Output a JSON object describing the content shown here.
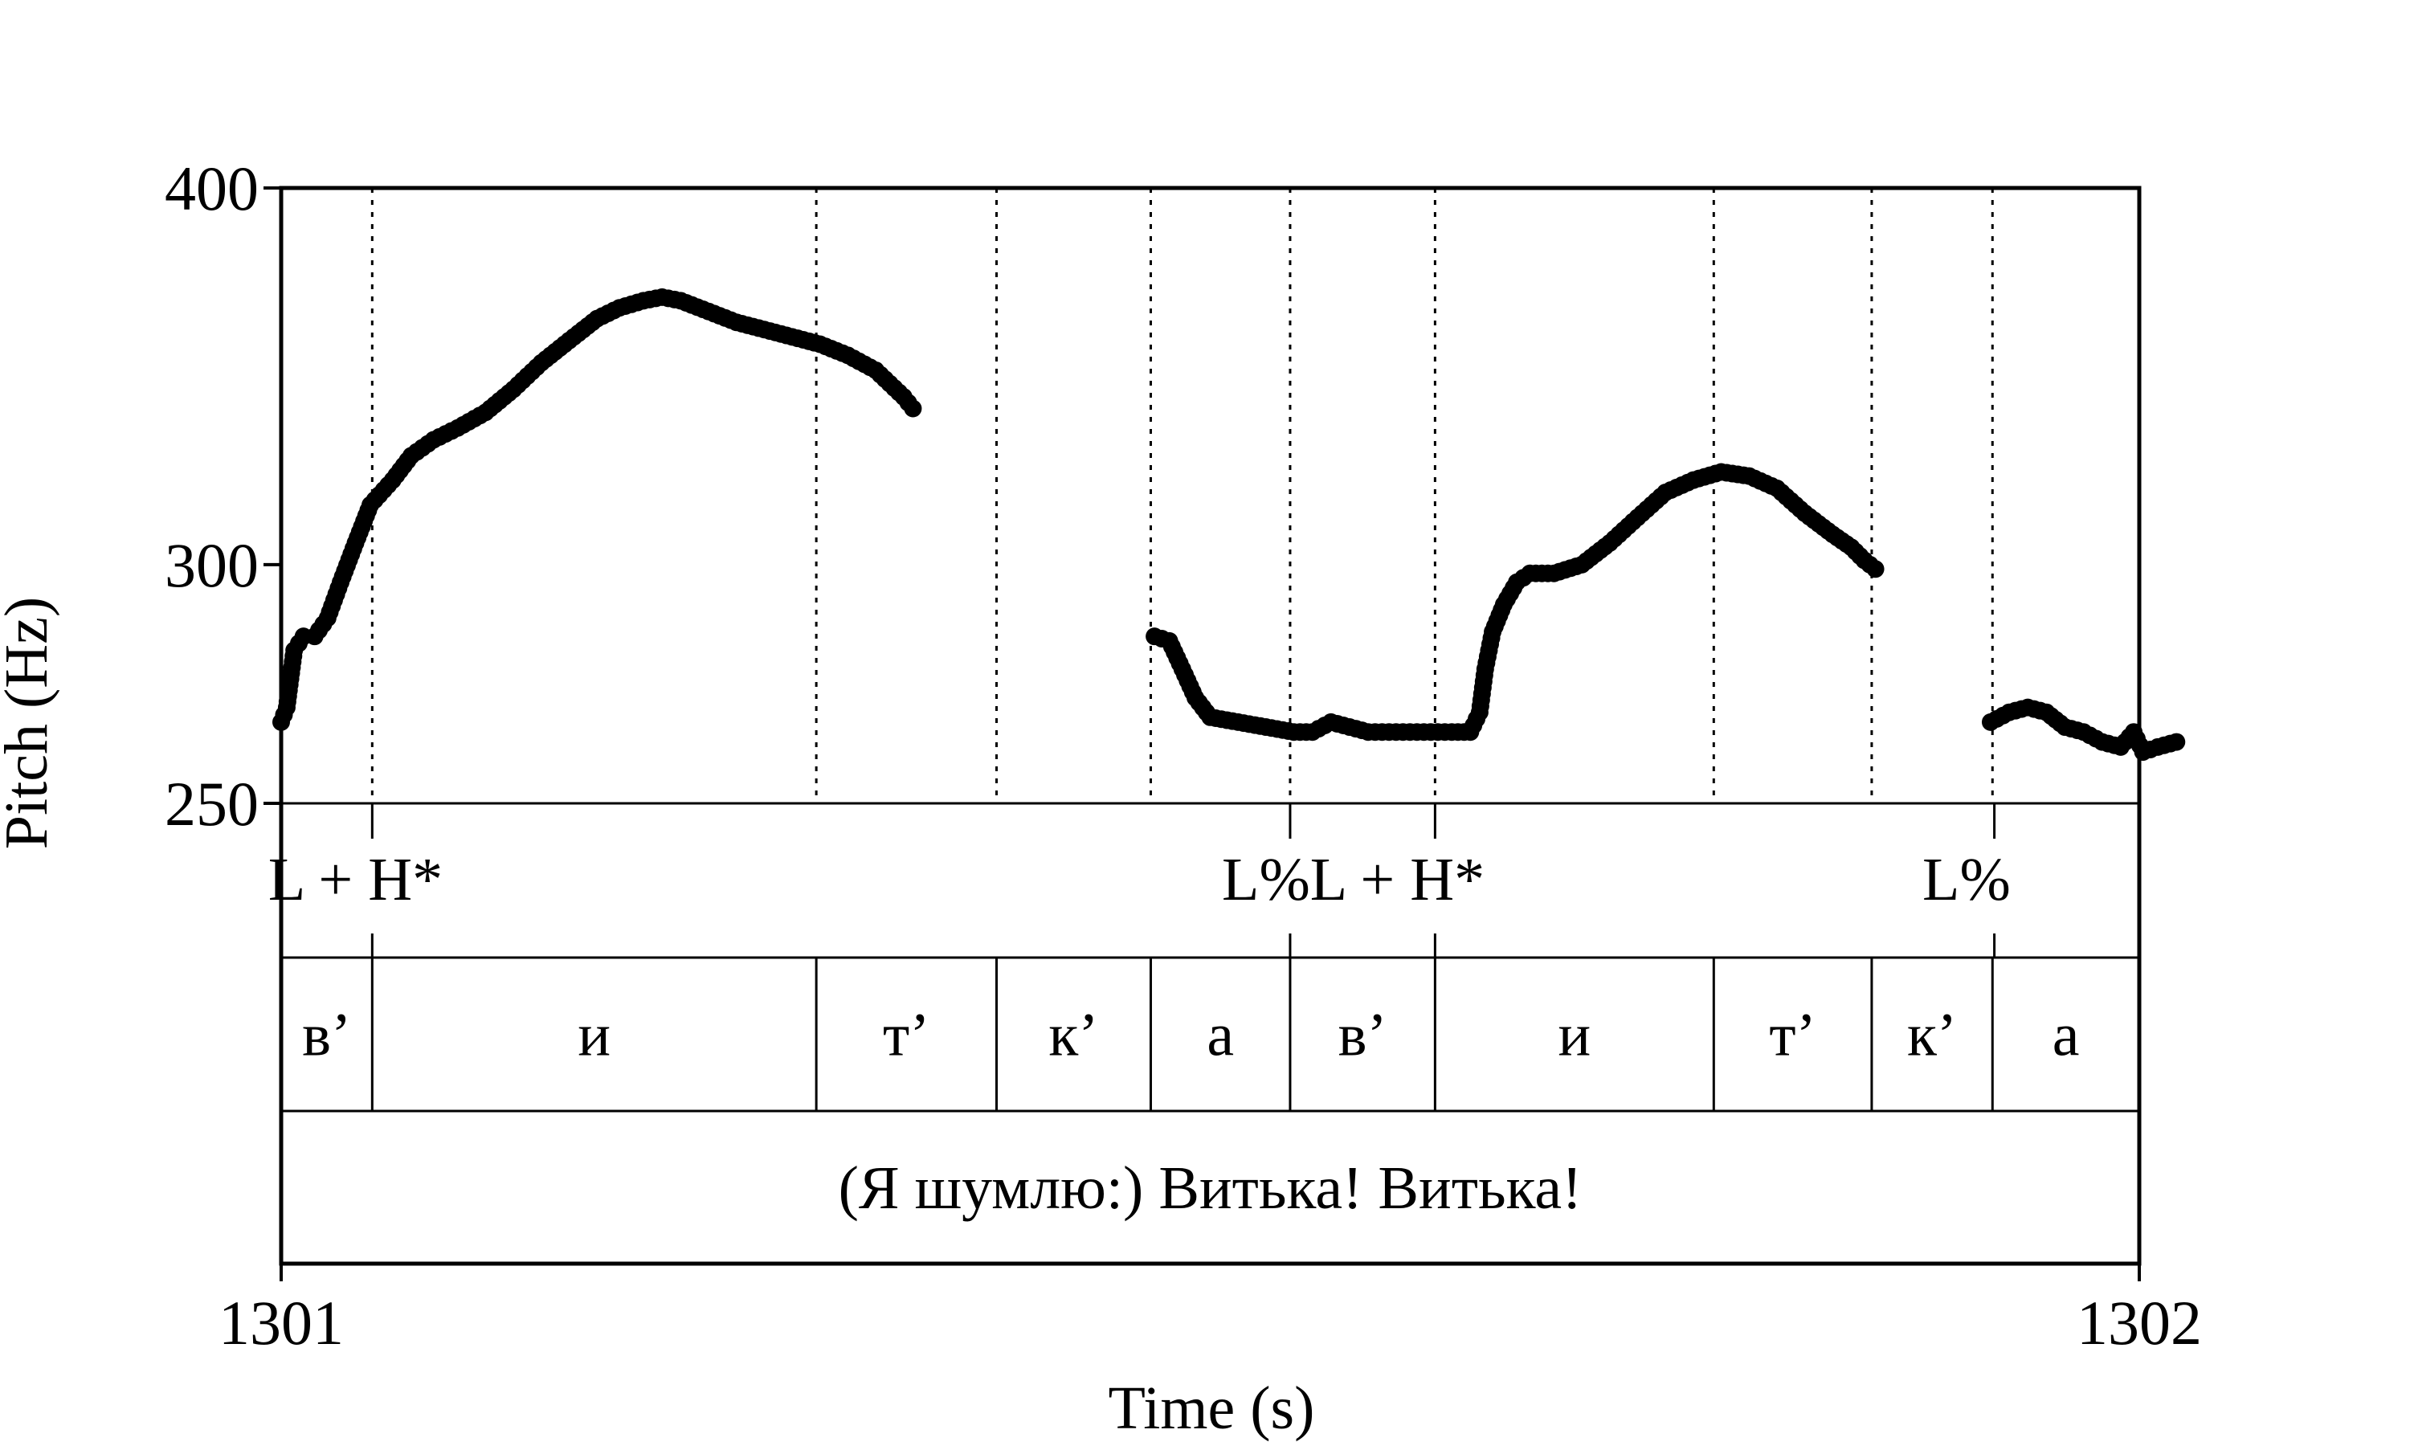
{
  "chart_data": {
    "type": "scatter",
    "xlabel": "Time (s)",
    "ylabel": "Pitch (Hz)",
    "xlim": [
      1301,
      1302
    ],
    "ylim": [
      250,
      400
    ],
    "x_ticks": [
      "1301",
      "1302"
    ],
    "y_ticks": [
      "400",
      "300",
      "250"
    ],
    "y_tick_values": [
      400,
      300,
      250
    ],
    "y_scale": "log",
    "marker_color": "#000000",
    "series": [
      {
        "points": [
          [
            1301.0,
            266
          ],
          [
            1301.003,
            269
          ],
          [
            1301.007,
            281
          ],
          [
            1301.012,
            284
          ],
          [
            1301.018,
            284
          ],
          [
            1301.025,
            288
          ],
          [
            1301.032,
            296
          ],
          [
            1301.04,
            305
          ],
          [
            1301.048,
            314
          ],
          [
            1301.06,
            320
          ],
          [
            1301.07,
            326
          ],
          [
            1301.082,
            330
          ],
          [
            1301.095,
            333
          ],
          [
            1301.11,
            337
          ],
          [
            1301.125,
            343
          ],
          [
            1301.14,
            350
          ],
          [
            1301.155,
            356
          ],
          [
            1301.17,
            362
          ],
          [
            1301.182,
            365
          ],
          [
            1301.195,
            367
          ],
          [
            1301.205,
            368
          ],
          [
            1301.215,
            367
          ],
          [
            1301.23,
            364
          ],
          [
            1301.245,
            361
          ],
          [
            1301.26,
            359
          ],
          [
            1301.275,
            357
          ],
          [
            1301.29,
            355
          ],
          [
            1301.305,
            352
          ],
          [
            1301.32,
            348
          ],
          [
            1301.335,
            341
          ],
          [
            1301.34,
            338
          ]
        ]
      },
      {
        "points": [
          [
            1301.47,
            284
          ],
          [
            1301.478,
            283
          ],
          [
            1301.485,
            277
          ],
          [
            1301.492,
            271
          ],
          [
            1301.5,
            267
          ],
          [
            1301.515,
            266
          ],
          [
            1301.53,
            265
          ],
          [
            1301.545,
            264
          ],
          [
            1301.555,
            264
          ],
          [
            1301.565,
            266
          ],
          [
            1301.575,
            265
          ],
          [
            1301.585,
            264
          ],
          [
            1301.6,
            264
          ],
          [
            1301.615,
            264
          ],
          [
            1301.63,
            264
          ],
          [
            1301.64,
            264
          ],
          [
            1301.645,
            268
          ],
          [
            1301.648,
            277
          ],
          [
            1301.652,
            285
          ],
          [
            1301.658,
            291
          ],
          [
            1301.665,
            296
          ],
          [
            1301.672,
            298
          ],
          [
            1301.685,
            298
          ],
          [
            1301.7,
            300
          ],
          [
            1301.715,
            305
          ],
          [
            1301.73,
            311
          ],
          [
            1301.745,
            317
          ],
          [
            1301.76,
            320
          ],
          [
            1301.775,
            322
          ],
          [
            1301.79,
            321
          ],
          [
            1301.805,
            318
          ],
          [
            1301.82,
            312
          ],
          [
            1301.835,
            307
          ],
          [
            1301.845,
            304
          ],
          [
            1301.852,
            301
          ],
          [
            1301.858,
            299
          ]
        ]
      },
      {
        "points": [
          [
            1301.92,
            266
          ],
          [
            1301.93,
            268
          ],
          [
            1301.94,
            269
          ],
          [
            1301.95,
            268
          ],
          [
            1301.96,
            265
          ],
          [
            1301.97,
            264
          ],
          [
            1301.98,
            262
          ],
          [
            1301.99,
            261
          ],
          [
            1301.997,
            264
          ],
          [
            1302.002,
            260
          ],
          [
            1302.01,
            261
          ],
          [
            1302.02,
            262
          ]
        ]
      }
    ],
    "tiers": [
      {
        "name": "tones",
        "boundaries": [
          1301.049,
          1301.543,
          1301.621,
          1301.922
        ],
        "labels": [
          {
            "x": 1301.04,
            "text": "L + H*"
          },
          {
            "x": 1301.577,
            "text": "L%L + H*"
          },
          {
            "x": 1301.907,
            "text": "L%"
          }
        ]
      },
      {
        "name": "segments",
        "boundaries": [
          1301.049,
          1301.288,
          1301.385,
          1301.468,
          1301.543,
          1301.621,
          1301.771,
          1301.856,
          1301.921
        ],
        "labels": [
          "в’",
          "и",
          "т’",
          "к’",
          "а",
          "в’",
          "и",
          "т’",
          "к’",
          "а"
        ]
      },
      {
        "name": "sentence",
        "labels": [
          "(Я шумлю:) Витька! Витька!"
        ]
      }
    ],
    "grid_dotted_at": [
      1301.049,
      1301.288,
      1301.385,
      1301.468,
      1301.543,
      1301.621,
      1301.771,
      1301.856,
      1301.921
    ],
    "grid": "dotted vertical lines at segment boundaries"
  }
}
